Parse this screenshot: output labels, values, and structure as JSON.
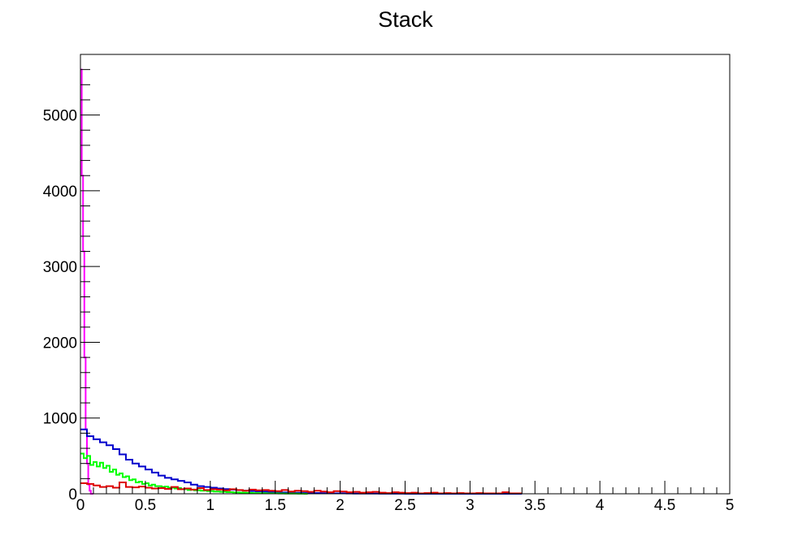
{
  "chart_data": {
    "type": "line",
    "title": "Stack",
    "xlabel": "",
    "ylabel": "",
    "xlim": [
      0,
      5
    ],
    "ylim": [
      0,
      5800
    ],
    "grid": false,
    "legend": "none",
    "x_tick_labels": [
      "0",
      "0.5",
      "1",
      "1.5",
      "2",
      "2.5",
      "3",
      "3.5",
      "4",
      "4.5",
      "5"
    ],
    "y_tick_labels": [
      "0",
      "1000",
      "2000",
      "3000",
      "4000",
      "5000"
    ],
    "x_ticks": [
      0,
      0.5,
      1,
      1.5,
      2,
      2.5,
      3,
      3.5,
      4,
      4.5,
      5
    ],
    "y_ticks": [
      0,
      1000,
      2000,
      3000,
      4000,
      5000
    ],
    "series": [
      {
        "color": "#ff00ff",
        "bin_width": 0.01,
        "x_start": 0,
        "values": [
          5600,
          4200,
          3200,
          1800,
          850,
          400,
          120,
          40,
          0,
          0
        ]
      },
      {
        "color": "#0000cc",
        "bin_width": 0.05,
        "x_start": 0,
        "values": [
          850,
          760,
          720,
          680,
          640,
          590,
          520,
          450,
          400,
          360,
          320,
          280,
          240,
          210,
          190,
          170,
          150,
          120,
          100,
          90,
          80,
          70,
          62,
          55,
          48,
          42,
          36,
          32,
          28,
          24,
          20,
          18,
          16,
          14,
          12,
          10,
          9,
          8,
          7,
          6,
          5,
          4,
          3,
          3,
          2,
          2,
          1,
          1,
          1,
          1,
          0,
          0,
          0,
          0,
          0,
          0,
          0,
          0,
          0,
          0,
          0,
          0,
          0,
          0,
          0,
          0,
          0,
          0
        ]
      },
      {
        "color": "#00ff00",
        "bin_width": 0.025,
        "x_start": 0,
        "values": [
          530,
          470,
          500,
          380,
          420,
          360,
          410,
          340,
          370,
          290,
          320,
          250,
          270,
          220,
          230,
          180,
          190,
          150,
          160,
          130,
          140,
          110,
          120,
          100,
          100,
          90,
          95,
          80,
          80,
          70,
          75,
          60,
          62,
          50,
          55,
          45,
          47,
          40,
          42,
          35,
          36,
          30,
          30,
          26,
          27,
          22,
          22,
          18,
          18,
          15,
          15,
          12,
          12,
          10,
          10,
          8,
          8,
          6,
          6,
          5,
          5,
          4,
          4,
          3,
          3,
          2,
          2,
          1,
          1,
          0
        ]
      },
      {
        "color": "#dd0000",
        "bin_width": 0.05,
        "x_start": 0,
        "values": [
          140,
          130,
          110,
          90,
          100,
          80,
          150,
          90,
          85,
          95,
          80,
          70,
          75,
          65,
          90,
          60,
          70,
          55,
          75,
          50,
          60,
          55,
          45,
          60,
          50,
          40,
          55,
          45,
          50,
          40,
          35,
          50,
          30,
          40,
          35,
          25,
          40,
          30,
          20,
          35,
          30,
          20,
          25,
          15,
          20,
          25,
          15,
          10,
          20,
          15,
          10,
          15,
          5,
          10,
          15,
          5,
          10,
          5,
          10,
          5,
          5,
          10,
          5,
          5,
          5,
          20,
          5,
          5
        ]
      }
    ]
  }
}
